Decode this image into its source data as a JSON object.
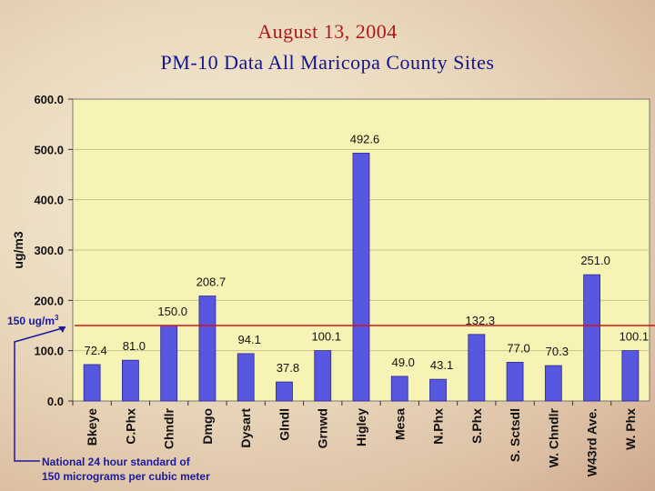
{
  "title_line1": "August 13, 2004",
  "title_line2": "PM-10 Data All Maricopa County Sites",
  "chart_data": {
    "type": "bar",
    "title": "August 13, 2004 PM-10 Data All Maricopa County Sites",
    "ylabel": "ug/m3",
    "ylim": [
      0,
      600
    ],
    "yticks": [
      "0.0",
      "100.0",
      "200.0",
      "300.0",
      "400.0",
      "500.0",
      "600.0"
    ],
    "categories": [
      "Bkeye",
      "C.Phx",
      "Chndlr",
      "Dmgo",
      "Dysart",
      "Glndl",
      "Grnwd",
      "Higley",
      "Mesa",
      "N.Phx",
      "S.Phx",
      "S. Sctsdl",
      "W. Chndlr",
      "W43rd Ave.",
      "W. Phx"
    ],
    "values": [
      72.4,
      81.0,
      150.0,
      208.7,
      94.1,
      37.8,
      100.1,
      492.6,
      49.0,
      43.1,
      132.3,
      77.0,
      70.3,
      251.0,
      100.1
    ],
    "value_labels": [
      "72.4",
      "81.0",
      "150.0",
      "208.7",
      "94.1",
      "37.8",
      "100.1",
      "492.6",
      "49.0",
      "43.1",
      "132.3",
      "77.0",
      "70.3",
      "251.0",
      "100.1"
    ],
    "bar_color": "#5757e0",
    "plot_bg": "#f7f3b4",
    "grid": "horizontal",
    "standard_line": {
      "value": 150,
      "label_text": "150 ug/m",
      "label_sup": "3",
      "color": "#d21414"
    }
  },
  "annotation": {
    "line1": "National 24 hour standard of",
    "line2": "150 micrograms per cubic meter"
  }
}
